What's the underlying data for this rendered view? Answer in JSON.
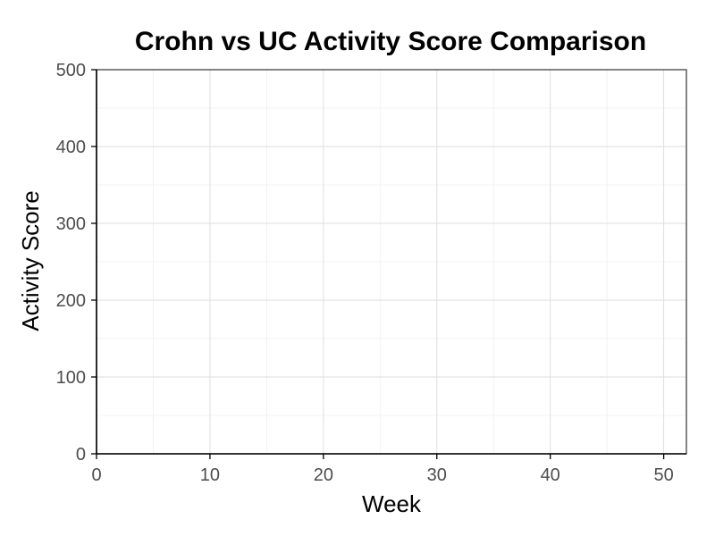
{
  "chart_data": {
    "type": "line",
    "title": "Crohn vs UC Activity Score Comparison",
    "xlabel": "Week",
    "ylabel": "Activity Score",
    "xlim": [
      0,
      52
    ],
    "ylim": [
      0,
      500
    ],
    "x_ticks": [
      0,
      10,
      20,
      30,
      40,
      50
    ],
    "y_ticks": [
      0,
      100,
      200,
      300,
      400,
      500
    ],
    "x_minor_ticks": [
      5,
      15,
      25,
      35,
      45
    ],
    "y_minor_ticks": [
      50,
      150,
      250,
      350,
      450
    ],
    "grid": true,
    "series": []
  },
  "colors": {
    "background": "#ffffff",
    "grid_major": "#dedede",
    "grid_minor": "#efefef",
    "axis": "#000000",
    "tick_label": "#4d4d4d"
  }
}
